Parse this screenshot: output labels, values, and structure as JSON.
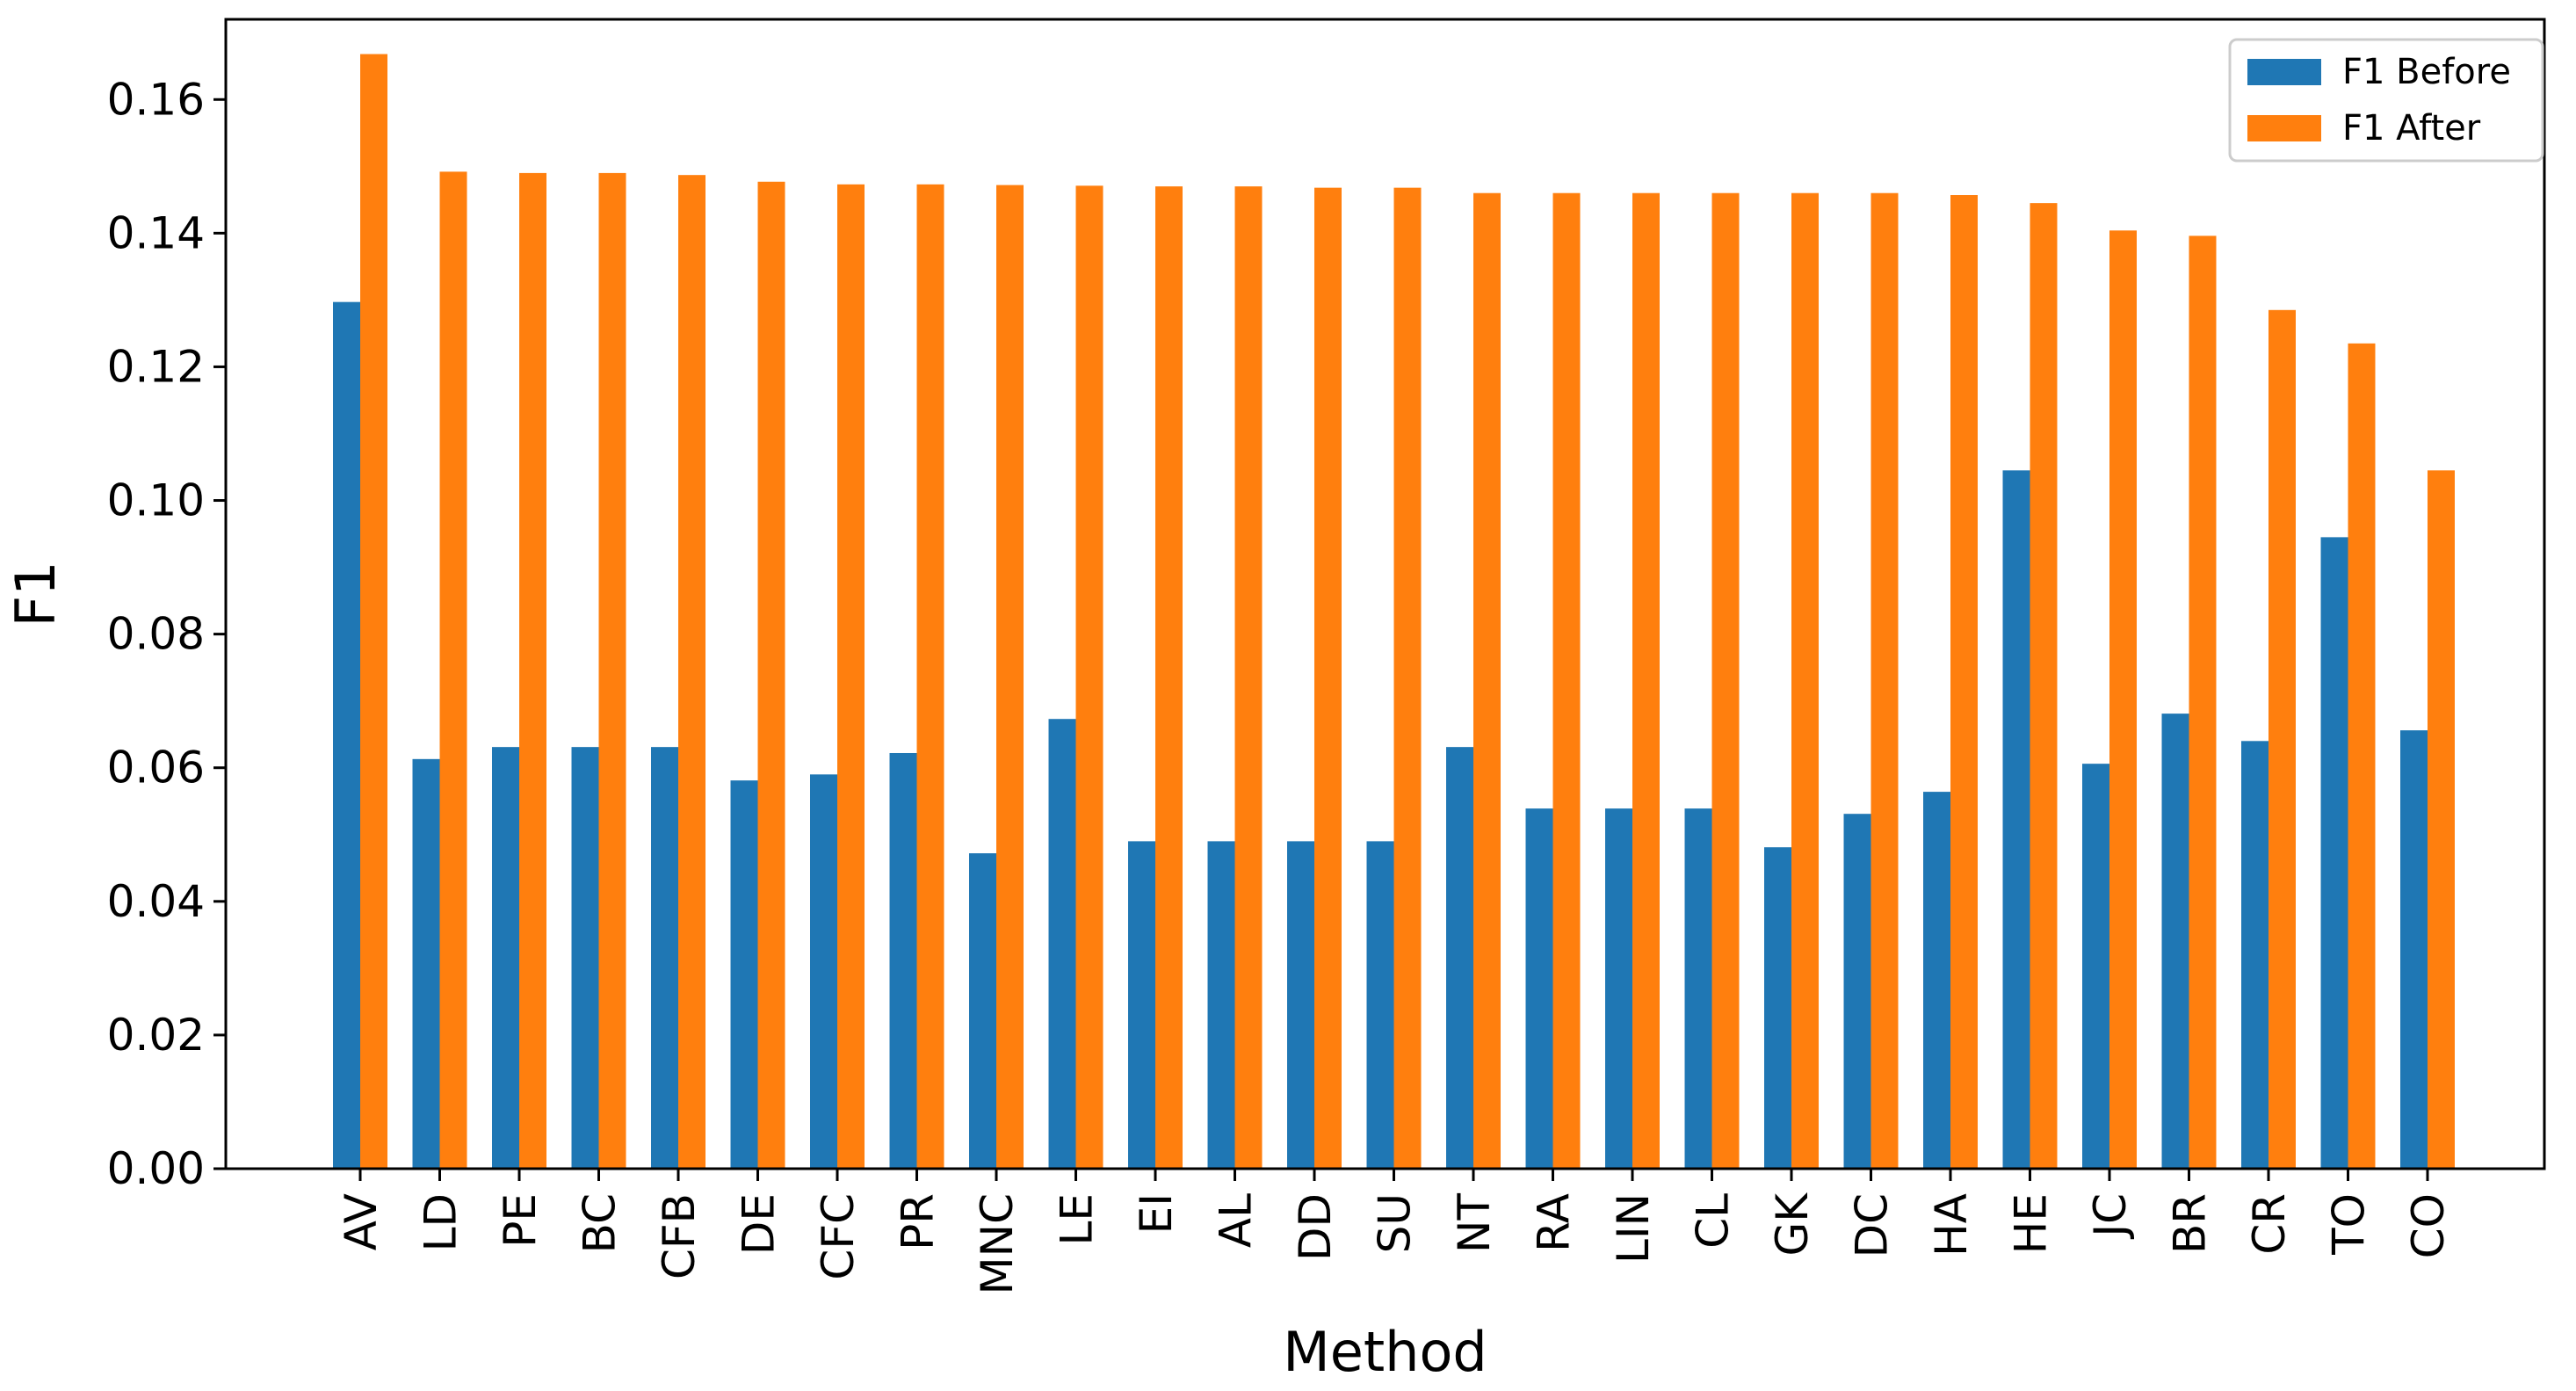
{
  "chart_data": {
    "type": "bar",
    "title": "",
    "xlabel": "Method",
    "ylabel": "F1",
    "ylim": [
      0,
      0.172
    ],
    "yticks": [
      "0.00",
      "0.02",
      "0.04",
      "0.06",
      "0.08",
      "0.10",
      "0.12",
      "0.14",
      "0.16"
    ],
    "categories": [
      "AV",
      "LD",
      "PE",
      "BC",
      "CFB",
      "DE",
      "CFC",
      "PR",
      "MNC",
      "LE",
      "EI",
      "AL",
      "DD",
      "SU",
      "NT",
      "RA",
      "LIN",
      "CL",
      "GK",
      "DC",
      "HA",
      "HE",
      "JC",
      "BR",
      "CR",
      "TO",
      "CO"
    ],
    "series": [
      {
        "name": "F1 Before",
        "color": "#1f77b4",
        "values": [
          0.1297,
          0.0613,
          0.0631,
          0.0631,
          0.0631,
          0.0581,
          0.059,
          0.0622,
          0.0472,
          0.0673,
          0.049,
          0.049,
          0.049,
          0.049,
          0.0631,
          0.0539,
          0.0539,
          0.0539,
          0.0481,
          0.0531,
          0.0564,
          0.1045,
          0.0606,
          0.0681,
          0.064,
          0.0945,
          0.0656
        ]
      },
      {
        "name": "F1 After",
        "color": "#ff7f0e",
        "values": [
          0.1668,
          0.1492,
          0.149,
          0.149,
          0.1487,
          0.1477,
          0.1473,
          0.1473,
          0.1472,
          0.1471,
          0.147,
          0.147,
          0.1468,
          0.1468,
          0.146,
          0.146,
          0.146,
          0.146,
          0.146,
          0.146,
          0.1457,
          0.1445,
          0.1404,
          0.1396,
          0.1285,
          0.1235,
          0.1045
        ]
      }
    ],
    "grid": false,
    "legend_position": "top-right"
  }
}
